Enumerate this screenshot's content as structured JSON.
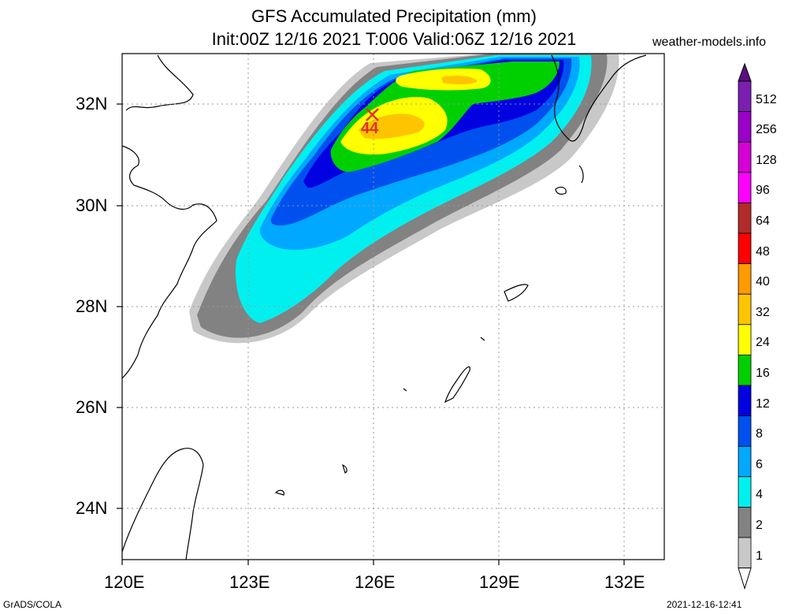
{
  "header": {
    "title_line1": "GFS Accumulated Precipitation (mm)",
    "title_line2": "Init:00Z 12/16 2021 T:006 Valid:06Z 12/16 2021",
    "site": "weather-models.info"
  },
  "map": {
    "lon_labels": [
      "120E",
      "123E",
      "126E",
      "129E",
      "132E"
    ],
    "lat_labels": [
      "32N",
      "30N",
      "28N",
      "26N",
      "24N"
    ],
    "max_marker": {
      "symbol": "✕",
      "value": "44"
    }
  },
  "colorbar": {
    "labels": [
      "512",
      "256",
      "128",
      "96",
      "64",
      "48",
      "40",
      "32",
      "24",
      "16",
      "12",
      "8",
      "6",
      "4",
      "2",
      "1"
    ],
    "colors": [
      "#7a1fb0",
      "#9a00c8",
      "#d400d4",
      "#ff00ff",
      "#b22a2a",
      "#ff0000",
      "#ff9a00",
      "#ffc400",
      "#ffff00",
      "#00d000",
      "#0000e0",
      "#0050f0",
      "#00a8ff",
      "#00f0f0",
      "#828282",
      "#c8c8c8"
    ]
  },
  "footer": {
    "credit": "GrADS/COLA",
    "timestamp": "2021-12-16-12:41"
  }
}
